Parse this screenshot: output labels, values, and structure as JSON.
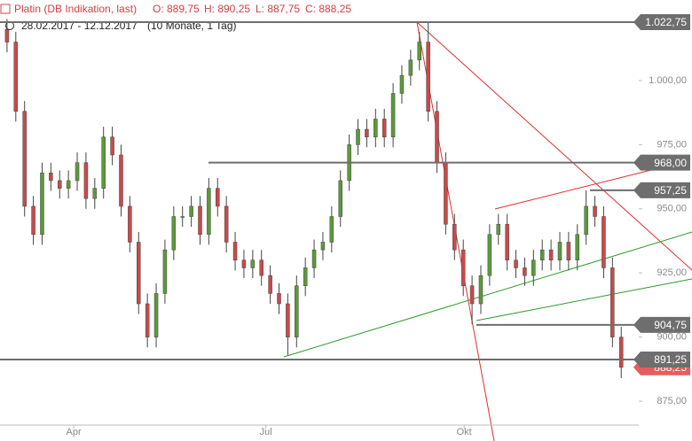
{
  "header": {
    "title": "Platin (DB Indikation, last)",
    "ohlc": [
      "O: 889,75",
      "H: 890,25",
      "L: 887,75",
      "C: 888,25"
    ],
    "range": "28.02.2017 - 12.12.2017",
    "period": "(10 Monate, 1 Tag)"
  },
  "chart_data": {
    "type": "candlestick",
    "up_color": "#5b9a3a",
    "down_color": "#c94a4a",
    "open": [
      1020,
      1015,
      988,
      951,
      940,
      964,
      961,
      958,
      961,
      968,
      954,
      958,
      978,
      971,
      951,
      937,
      913,
      900,
      917,
      934,
      947,
      947,
      951,
      940,
      958,
      951,
      937,
      930,
      927,
      930,
      924,
      917,
      913,
      900,
      920,
      927,
      934,
      937,
      947,
      961,
      975,
      981,
      978,
      985,
      978,
      995,
      1002,
      1008,
      1015,
      988,
      968,
      944,
      934,
      920,
      913,
      924,
      940,
      944,
      930,
      927,
      924,
      930,
      934,
      930,
      937,
      930,
      940,
      951,
      947,
      927,
      900
    ],
    "high": [
      1024,
      1019,
      992,
      955,
      968,
      968,
      965,
      965,
      972,
      972,
      962,
      982,
      982,
      975,
      955,
      941,
      917,
      921,
      938,
      951,
      951,
      955,
      955,
      962,
      962,
      955,
      941,
      934,
      934,
      934,
      928,
      921,
      917,
      924,
      931,
      938,
      941,
      951,
      965,
      979,
      985,
      985,
      989,
      989,
      999,
      1006,
      1012,
      1019,
      1022.75,
      992,
      972,
      948,
      938,
      924,
      928,
      944,
      948,
      948,
      934,
      931,
      934,
      938,
      938,
      941,
      941,
      944,
      957.25,
      955,
      951,
      931,
      904
    ],
    "low": [
      1011,
      984,
      947,
      936,
      936,
      957,
      954,
      954,
      957,
      950,
      950,
      954,
      967,
      947,
      933,
      909,
      896,
      896,
      913,
      930,
      943,
      943,
      936,
      936,
      947,
      933,
      926,
      923,
      923,
      920,
      913,
      909,
      893,
      896,
      916,
      923,
      930,
      933,
      943,
      957,
      971,
      974,
      974,
      974,
      974,
      991,
      998,
      1004,
      984,
      964,
      940,
      930,
      916,
      905,
      909,
      920,
      936,
      926,
      923,
      920,
      920,
      926,
      926,
      926,
      926,
      926,
      936,
      943,
      923,
      896,
      884
    ],
    "close": [
      1015,
      988,
      951,
      940,
      964,
      961,
      958,
      961,
      968,
      954,
      958,
      978,
      971,
      951,
      937,
      913,
      900,
      917,
      934,
      947,
      947,
      951,
      940,
      958,
      951,
      937,
      930,
      927,
      930,
      924,
      917,
      913,
      900,
      920,
      927,
      934,
      937,
      947,
      961,
      975,
      981,
      978,
      985,
      978,
      995,
      1002,
      1008,
      1015,
      988,
      968,
      944,
      934,
      920,
      913,
      924,
      940,
      944,
      930,
      927,
      924,
      930,
      934,
      930,
      937,
      930,
      940,
      951,
      947,
      927,
      900,
      888.25
    ],
    "xlim": [
      -0.8,
      72
    ],
    "xticks": [
      {
        "value": 7.6,
        "label": "Apr"
      },
      {
        "value": 29.5,
        "label": "Jul"
      },
      {
        "value": 52.1,
        "label": "Okt"
      }
    ],
    "ylim": [
      859.5,
      1031.4
    ],
    "yticks": [
      {
        "value": 875,
        "label": "875,00"
      },
      {
        "value": 900,
        "label": "900,00"
      },
      {
        "value": 925,
        "label": "925,00"
      },
      {
        "value": 950,
        "label": "950,00"
      },
      {
        "value": 975,
        "label": "975,00"
      },
      {
        "value": 1000,
        "label": "1.000,00"
      }
    ],
    "levels": [
      {
        "value": 1022.75,
        "label": "1.022,75"
      },
      {
        "value": 968,
        "label": "968,00"
      },
      {
        "value": 957.25,
        "label": "957,25"
      },
      {
        "value": 904.75,
        "label": "904,75"
      },
      {
        "value": 891.25,
        "label": "891,25"
      }
    ],
    "level_color": "#6e6e6e",
    "last_price": {
      "value": 888.25,
      "label": "888,25"
    },
    "last_color": "#e65c5c"
  }
}
